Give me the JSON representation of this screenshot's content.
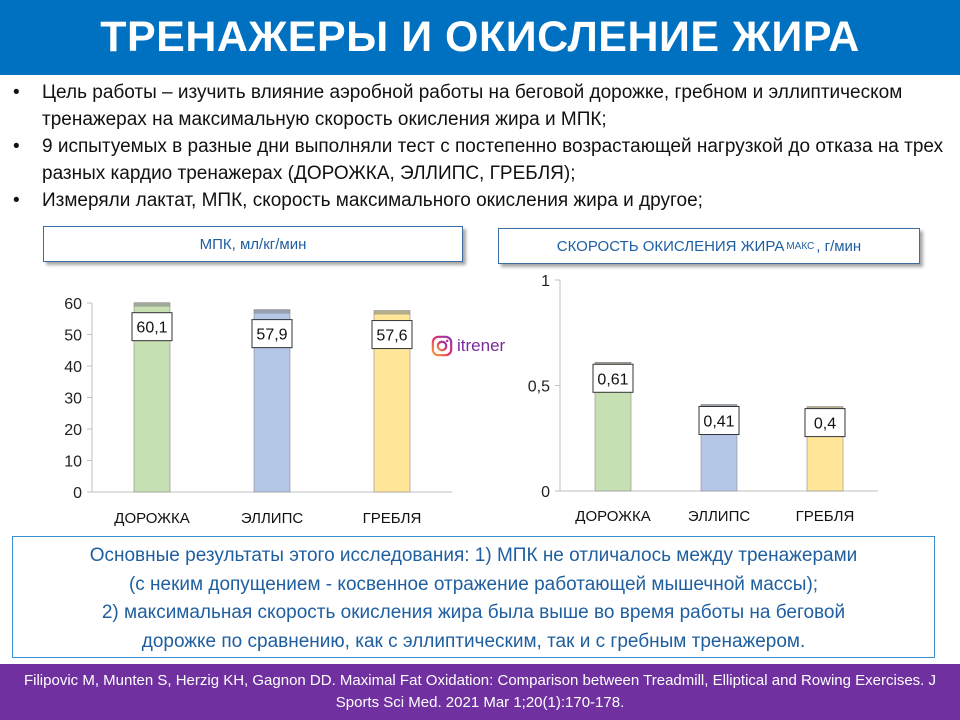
{
  "title": "ТРЕНАЖЕРЫ И ОКИСЛЕНИЕ ЖИРА",
  "bullets": [
    "Цель работы – изучить влияние аэробной работы на беговой дорожке, гребном и эллиптическом тренажерах на максимальную скорость окисления жира и МПК;",
    "9 испытуемых в разные дни выполняли тест с постепенно возрастающей нагрузкой до отказа на трех разных кардио тренажерах (ДОРОЖКА, ЭЛЛИПС, ГРЕБЛЯ);",
    "Измеряли лактат, МПК, скорость максимального окисления жира и другое;"
  ],
  "watermark": "itrener",
  "summary_lines": [
    "Основные результаты этого исследования: 1) МПК не отличалось между тренажерами",
    "(с неким допущением - косвенное отражение работающей мышечной массы);",
    "2) максимальная скорость окисления жира была выше во время работы на беговой",
    "дорожке по сравнению, как с эллиптическим, так и с гребным тренажером."
  ],
  "footer": "Filipovic M, Munten S, Herzig KH, Gagnon DD. Maximal Fat Oxidation: Comparison between Treadmill, Elliptical and Rowing Exercises. J Sports Sci Med. 2021 Mar 1;20(1):170-178.",
  "colors": {
    "title_bg": "#0070c0",
    "footer_bg": "#7030a0",
    "bar_treadmill": "#c6e0b4",
    "bar_elliptical": "#b4c7e7",
    "bar_rowing": "#ffe699"
  },
  "chart_data": [
    {
      "type": "bar",
      "title": "МПК, мл/кг/мин",
      "categories": [
        "ДОРОЖКА",
        "ЭЛЛИПС",
        "ГРЕБЛЯ"
      ],
      "values": [
        60.1,
        57.9,
        57.6
      ],
      "value_labels": [
        "60,1",
        "57,9",
        "57,6"
      ],
      "ylim": [
        0,
        60
      ],
      "yticks": [
        0,
        10,
        20,
        30,
        40,
        50,
        60
      ],
      "ytick_labels": [
        "0",
        "10",
        "20",
        "30",
        "40",
        "50",
        "60"
      ],
      "grid": false,
      "xlabel": "",
      "ylabel": ""
    },
    {
      "type": "bar",
      "title": "СКОРОСТЬ ОКИСЛЕНИЯ ЖИРА",
      "title_sub": "МАКС",
      "title_suffix": ", г/мин",
      "categories": [
        "ДОРОЖКА",
        "ЭЛЛИПС",
        "ГРЕБЛЯ"
      ],
      "values": [
        0.61,
        0.41,
        0.4
      ],
      "value_labels": [
        "0,61",
        "0,41",
        "0,4"
      ],
      "ylim": [
        0,
        1
      ],
      "yticks": [
        0,
        0.5,
        1
      ],
      "ytick_labels": [
        "0",
        "0,5",
        "1"
      ],
      "grid": false,
      "xlabel": "",
      "ylabel": ""
    }
  ]
}
